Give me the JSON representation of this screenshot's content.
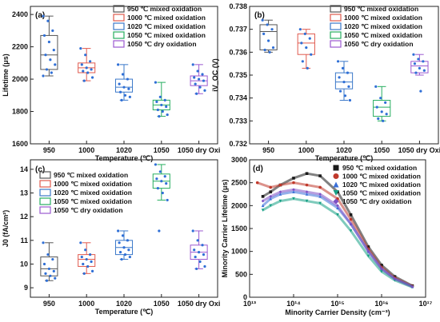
{
  "chart_data": [
    {
      "panel": "(a)",
      "type": "box",
      "categories": [
        "950",
        "1000",
        "1020",
        "1050",
        "1050 dry Oxi"
      ],
      "ylabel": "Lifetime (μs)",
      "xlabel": "Temperature (℃)",
      "ylim": [
        1600,
        2450
      ],
      "yticks": [
        1600,
        1800,
        2000,
        2200,
        2400
      ],
      "legend_position": "top-right",
      "legend": [
        "950 ℃ mixed oxidation",
        "1000 ℃ mixed oxidation",
        "1020 ℃ mixed oxidation",
        "1050 ℃ mixed oxidation",
        "1050 ℃ dry oxidation"
      ],
      "boxes": [
        {
          "q1": 2060,
          "median": 2150,
          "q3": 2270,
          "whisker_low": 2020,
          "whisker_high": 2390,
          "points": [
            2390,
            2360,
            2300,
            2270,
            2230,
            2180,
            2150,
            2120,
            2090,
            2060,
            2040,
            2020
          ]
        },
        {
          "q1": 2040,
          "median": 2070,
          "q3": 2100,
          "whisker_low": 1990,
          "whisker_high": 2190,
          "points": [
            2190,
            2150,
            2110,
            2090,
            2070,
            2060,
            2050,
            2040,
            2010,
            1990
          ]
        },
        {
          "q1": 1920,
          "median": 1950,
          "q3": 2000,
          "whisker_low": 1870,
          "whisker_high": 2090,
          "points": [
            2090,
            2030,
            2000,
            1970,
            1950,
            1940,
            1920,
            1900,
            1890,
            1870
          ]
        },
        {
          "q1": 1810,
          "median": 1840,
          "q3": 1870,
          "whisker_low": 1770,
          "whisker_high": 1980,
          "points": [
            1980,
            1890,
            1870,
            1860,
            1840,
            1830,
            1810,
            1800,
            1780,
            1770
          ]
        },
        {
          "q1": 1960,
          "median": 1990,
          "q3": 2020,
          "whisker_low": 1910,
          "whisker_high": 2090,
          "points": [
            2090,
            2050,
            2030,
            2010,
            2000,
            1990,
            1970,
            1950,
            1930,
            1910
          ]
        }
      ]
    },
    {
      "panel": "(b)",
      "type": "box",
      "categories": [
        "950",
        "1000",
        "1020",
        "1050",
        "1050 dry Oxi"
      ],
      "ylabel": "iV_OC (V)",
      "xlabel": "Temperature (℃)",
      "ylim": [
        0.732,
        0.738
      ],
      "yticks": [
        0.732,
        0.733,
        0.734,
        0.735,
        0.736,
        0.737,
        0.738
      ],
      "legend_position": "top-right",
      "legend": [
        "950 ℃ mixed oxidation",
        "1000 ℃ mixed oxidation",
        "1020 ℃ mixed oxidation",
        "1050 ℃ mixed oxidation",
        "1050 ℃ dry oxidation"
      ],
      "boxes": [
        {
          "q1": 0.7361,
          "median": 0.7369,
          "q3": 0.7372,
          "whisker_low": 0.736,
          "whisker_high": 0.7374,
          "points": [
            0.7374,
            0.7372,
            0.737,
            0.7368,
            0.7365,
            0.7362,
            0.7361,
            0.736
          ]
        },
        {
          "q1": 0.7359,
          "median": 0.7364,
          "q3": 0.7368,
          "whisker_low": 0.7353,
          "whisker_high": 0.737,
          "points": [
            0.737,
            0.7368,
            0.7366,
            0.7364,
            0.7362,
            0.7359,
            0.7356,
            0.7353
          ]
        },
        {
          "q1": 0.7344,
          "median": 0.7347,
          "q3": 0.7351,
          "whisker_low": 0.7339,
          "whisker_high": 0.7356,
          "points": [
            0.7356,
            0.7353,
            0.7351,
            0.7349,
            0.7347,
            0.7345,
            0.7343,
            0.7341,
            0.7339
          ]
        },
        {
          "q1": 0.7332,
          "median": 0.7336,
          "q3": 0.7339,
          "whisker_low": 0.733,
          "whisker_high": 0.7345,
          "points": [
            0.7345,
            0.734,
            0.7338,
            0.7336,
            0.7334,
            0.7333,
            0.7331,
            0.733
          ]
        },
        {
          "q1": 0.7351,
          "median": 0.7354,
          "q3": 0.7356,
          "whisker_low": 0.735,
          "whisker_high": 0.7359,
          "points": [
            0.7359,
            0.7357,
            0.7356,
            0.7355,
            0.7353,
            0.7352,
            0.7351,
            0.7343
          ]
        }
      ]
    },
    {
      "panel": "(c)",
      "type": "box",
      "categories": [
        "950",
        "1000",
        "1020",
        "1050",
        "1050 dry Oxi"
      ],
      "ylabel": "J0 (fA/cm²)",
      "xlabel": "Temperature (℃)",
      "ylim": [
        8.6,
        14.4
      ],
      "yticks": [
        9,
        10,
        11,
        12,
        13,
        14
      ],
      "legend_position": "top-left",
      "legend": [
        "950 ℃ mixed oxidation",
        "1000 ℃ mixed oxidation",
        "1020 ℃ mixed oxidation",
        "1050 ℃ mixed oxidation",
        "1050 ℃ dry oxidation"
      ],
      "boxes": [
        {
          "q1": 9.5,
          "median": 9.8,
          "q3": 10.3,
          "whisker_low": 9.3,
          "whisker_high": 10.9,
          "points": [
            10.9,
            10.4,
            10.2,
            10.0,
            9.8,
            9.7,
            9.6,
            9.5,
            9.4,
            9.3
          ]
        },
        {
          "q1": 9.9,
          "median": 10.2,
          "q3": 10.4,
          "whisker_low": 9.6,
          "whisker_high": 10.9,
          "points": [
            10.9,
            10.6,
            10.4,
            10.3,
            10.2,
            10.1,
            10.0,
            9.9,
            9.7,
            9.6
          ]
        },
        {
          "q1": 10.4,
          "median": 10.7,
          "q3": 11.0,
          "whisker_low": 10.2,
          "whisker_high": 11.4,
          "points": [
            11.4,
            11.2,
            11.0,
            10.9,
            10.7,
            10.6,
            10.5,
            10.4,
            10.3,
            10.2
          ]
        },
        {
          "q1": 13.2,
          "median": 13.5,
          "q3": 13.8,
          "whisker_low": 12.7,
          "whisker_high": 14.2,
          "points": [
            14.2,
            13.9,
            13.7,
            13.6,
            13.5,
            13.4,
            13.2,
            13.0,
            12.7,
            11.4
          ]
        },
        {
          "q1": 10.2,
          "median": 10.5,
          "q3": 10.8,
          "whisker_low": 9.8,
          "whisker_high": 11.4,
          "points": [
            11.4,
            11.0,
            10.8,
            10.6,
            10.5,
            10.4,
            10.3,
            10.1,
            9.9,
            9.8
          ]
        }
      ]
    },
    {
      "panel": "(d)",
      "type": "scatter",
      "xscale": "log",
      "xlim": [
        10000000000000.0,
        1e+17
      ],
      "ylim": [
        0,
        3000
      ],
      "yticks": [
        0,
        500,
        1000,
        1500,
        2000,
        2500,
        3000
      ],
      "xtick_labels": [
        "10¹³",
        "10¹⁴",
        "10¹⁵",
        "10¹⁶",
        "10¹⁷"
      ],
      "xlabel": "Minority Carrier Density (cm⁻³)",
      "ylabel": "Minority Carrier Lifetime (μs)",
      "legend_position": "top-right",
      "series": [
        {
          "name": "950 ℃ mixed oxidation",
          "color": "#1a1a1a",
          "marker": "square",
          "x": [
            20000000000000.0,
            30000000000000.0,
            50000000000000.0,
            100000000000000.0,
            200000000000000.0,
            400000000000000.0,
            1000000000000000.0,
            2000000000000000.0,
            5000000000000000.0,
            1e+16,
            2e+16,
            5e+16
          ],
          "y": [
            2200,
            2300,
            2450,
            2600,
            2700,
            2650,
            2300,
            1800,
            1100,
            700,
            450,
            250
          ]
        },
        {
          "name": "1000 ℃ mixed oxidation",
          "color": "#c0392b",
          "marker": "circle",
          "x": [
            15000000000000.0,
            30000000000000.0,
            50000000000000.0,
            100000000000000.0,
            200000000000000.0,
            400000000000000.0,
            1000000000000000.0,
            2000000000000000.0,
            5000000000000000.0,
            1e+16,
            2e+16,
            5e+16
          ],
          "y": [
            2500,
            2400,
            2450,
            2500,
            2450,
            2400,
            2150,
            1700,
            1050,
            650,
            420,
            240
          ]
        },
        {
          "name": "1020 ℃ mixed oxidation",
          "color": "#3a6fd8",
          "marker": "triangle-up",
          "x": [
            20000000000000.0,
            30000000000000.0,
            50000000000000.0,
            100000000000000.0,
            200000000000000.0,
            400000000000000.0,
            1000000000000000.0,
            2000000000000000.0,
            5000000000000000.0,
            1e+16,
            2e+16,
            5e+16
          ],
          "y": [
            2000,
            2150,
            2250,
            2300,
            2250,
            2200,
            1950,
            1600,
            1000,
            620,
            400,
            230
          ]
        },
        {
          "name": "1050 ℃ mixed oxidation",
          "color": "#16a085",
          "marker": "triangle-down",
          "x": [
            20000000000000.0,
            30000000000000.0,
            50000000000000.0,
            100000000000000.0,
            200000000000000.0,
            400000000000000.0,
            1000000000000000.0,
            2000000000000000.0,
            5000000000000000.0,
            1e+16,
            2e+16,
            5e+16
          ],
          "y": [
            1900,
            2000,
            2100,
            2150,
            2100,
            2050,
            1800,
            1450,
            900,
            560,
            370,
            220
          ]
        },
        {
          "name": "1050 ℃ dry oxidation",
          "color": "#7d4fc4",
          "marker": "diamond",
          "x": [
            20000000000000.0,
            30000000000000.0,
            50000000000000.0,
            100000000000000.0,
            200000000000000.0,
            400000000000000.0,
            1000000000000000.0,
            2000000000000000.0,
            5000000000000000.0,
            1e+16,
            2e+16,
            5e+16
          ],
          "y": [
            2100,
            2200,
            2300,
            2350,
            2300,
            2250,
            2000,
            1600,
            1000,
            620,
            400,
            230
          ]
        }
      ]
    }
  ],
  "colors": {
    "950": "#555555",
    "1000": "#e05a4e",
    "1020": "#3a78c9",
    "1050": "#27ae60",
    "1050dry": "#9b59d0",
    "points": "#2f6fd6"
  }
}
